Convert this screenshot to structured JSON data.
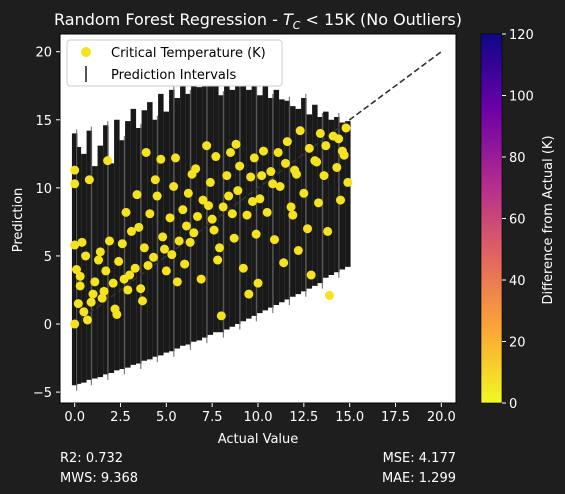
{
  "chart_data": {
    "type": "scatter",
    "title_main": "Random Forest Regression - ",
    "title_math": "T",
    "title_sub": "C",
    "title_tail": " < 15K (No Outliers)",
    "xlabel": "Actual Value",
    "ylabel": "Prediction",
    "xlim": [
      -0.8,
      20.8
    ],
    "ylim": [
      -5.8,
      21.3
    ],
    "xticks": [
      0.0,
      2.5,
      5.0,
      7.5,
      10.0,
      12.5,
      15.0,
      17.5,
      20.0
    ],
    "xtick_labels": [
      "0.0",
      "2.5",
      "5.0",
      "7.5",
      "10.0",
      "12.5",
      "15.0",
      "17.5",
      "20.0"
    ],
    "yticks": [
      -5,
      0,
      5,
      10,
      15,
      20
    ],
    "ytick_labels": [
      "−5",
      "0",
      "5",
      "10",
      "15",
      "20"
    ],
    "grid": false,
    "legend": {
      "position": "top-left",
      "entries": [
        {
          "label": "Critical Temperature (K)",
          "marker": "dot",
          "color": "#f5e31f"
        },
        {
          "label": "Prediction Intervals",
          "marker": "vline",
          "color": "#555555"
        }
      ]
    },
    "reference_line": {
      "style": "dashed",
      "color": "#333333",
      "points": [
        [
          0,
          0
        ],
        [
          20,
          20
        ]
      ]
    },
    "colorbar": {
      "label": "Difference from Actual (K)",
      "range": [
        0,
        120
      ],
      "ticks": [
        0,
        20,
        40,
        60,
        80,
        100,
        120
      ],
      "tick_labels": [
        "0",
        "20",
        "40",
        "60",
        "80",
        "100",
        "120"
      ],
      "colormap": "plasma_r",
      "stops": [
        "#f0f921",
        "#fca636",
        "#e16462",
        "#b12a90",
        "#6a00a8",
        "#0d0887"
      ]
    },
    "marker_color": "#f5e31f",
    "interval_color": "#000000",
    "points": [
      [
        0.0,
        11.3
      ],
      [
        0.0,
        10.3
      ],
      [
        0.8,
        10.6
      ],
      [
        0.0,
        5.8
      ],
      [
        0.1,
        4.0
      ],
      [
        0.3,
        2.8
      ],
      [
        0.2,
        1.5
      ],
      [
        0.5,
        0.9
      ],
      [
        0.0,
        0.0
      ],
      [
        0.3,
        3.5
      ],
      [
        0.6,
        5.0
      ],
      [
        0.9,
        1.6
      ],
      [
        1.1,
        3.1
      ],
      [
        1.3,
        4.7
      ],
      [
        1.6,
        2.4
      ],
      [
        1.8,
        12.0
      ],
      [
        1.9,
        6.1
      ],
      [
        2.1,
        3.0
      ],
      [
        2.3,
        0.7
      ],
      [
        2.4,
        4.6
      ],
      [
        2.6,
        5.9
      ],
      [
        2.8,
        8.2
      ],
      [
        3.0,
        3.6
      ],
      [
        3.1,
        6.8
      ],
      [
        3.3,
        4.1
      ],
      [
        3.5,
        7.1
      ],
      [
        3.6,
        2.6
      ],
      [
        3.8,
        5.6
      ],
      [
        3.9,
        12.6
      ],
      [
        4.1,
        8.1
      ],
      [
        4.3,
        4.9
      ],
      [
        4.5,
        9.4
      ],
      [
        4.7,
        12.1
      ],
      [
        4.8,
        6.4
      ],
      [
        5.0,
        3.9
      ],
      [
        5.2,
        7.8
      ],
      [
        5.4,
        10.1
      ],
      [
        5.5,
        12.2
      ],
      [
        5.7,
        6.1
      ],
      [
        5.9,
        8.4
      ],
      [
        6.0,
        4.4
      ],
      [
        6.2,
        9.6
      ],
      [
        6.4,
        11.0
      ],
      [
        6.5,
        6.7
      ],
      [
        6.7,
        7.9
      ],
      [
        6.9,
        3.3
      ],
      [
        7.0,
        9.1
      ],
      [
        7.2,
        13.1
      ],
      [
        7.4,
        10.4
      ],
      [
        7.5,
        7.7
      ],
      [
        7.7,
        12.3
      ],
      [
        7.9,
        5.6
      ],
      [
        8.0,
        0.6
      ],
      [
        8.1,
        8.6
      ],
      [
        8.3,
        10.9
      ],
      [
        8.5,
        12.6
      ],
      [
        8.7,
        6.3
      ],
      [
        8.9,
        9.8
      ],
      [
        9.0,
        11.6
      ],
      [
        9.2,
        4.1
      ],
      [
        9.4,
        8.0
      ],
      [
        9.5,
        2.2
      ],
      [
        9.6,
        10.8
      ],
      [
        9.8,
        12.2
      ],
      [
        10.0,
        3.0
      ],
      [
        10.1,
        9.2
      ],
      [
        10.3,
        12.7
      ],
      [
        10.5,
        8.2
      ],
      [
        10.7,
        11.2
      ],
      [
        10.9,
        6.2
      ],
      [
        11.1,
        12.6
      ],
      [
        11.2,
        10.1
      ],
      [
        11.4,
        4.5
      ],
      [
        11.6,
        13.4
      ],
      [
        11.8,
        8.6
      ],
      [
        12.0,
        11.3
      ],
      [
        12.2,
        5.4
      ],
      [
        12.3,
        14.2
      ],
      [
        12.5,
        9.6
      ],
      [
        12.7,
        7.0
      ],
      [
        12.9,
        3.6
      ],
      [
        13.1,
        12.0
      ],
      [
        13.3,
        8.9
      ],
      [
        13.4,
        14.0
      ],
      [
        13.6,
        10.9
      ],
      [
        13.8,
        6.8
      ],
      [
        13.9,
        2.1
      ],
      [
        14.1,
        13.8
      ],
      [
        14.3,
        11.5
      ],
      [
        14.5,
        9.1
      ],
      [
        14.6,
        12.7
      ],
      [
        14.8,
        14.4
      ],
      [
        14.9,
        10.4
      ],
      [
        0.4,
        6.0
      ],
      [
        1.4,
        5.3
      ],
      [
        2.2,
        1.1
      ],
      [
        3.4,
        9.5
      ],
      [
        4.4,
        10.6
      ],
      [
        6.6,
        11.4
      ],
      [
        8.8,
        13.2
      ],
      [
        1.0,
        2.2
      ],
      [
        1.7,
        3.9
      ],
      [
        2.7,
        3.3
      ],
      [
        4.9,
        5.5
      ],
      [
        6.1,
        7.2
      ],
      [
        7.3,
        8.7
      ],
      [
        8.4,
        9.4
      ],
      [
        10.2,
        10.9
      ],
      [
        11.5,
        11.8
      ],
      [
        12.8,
        12.9
      ],
      [
        13.7,
        13.1
      ],
      [
        14.4,
        13.6
      ],
      [
        0.7,
        0.3
      ],
      [
        1.5,
        1.9
      ],
      [
        2.9,
        2.5
      ],
      [
        4.0,
        4.3
      ],
      [
        5.3,
        5.1
      ],
      [
        6.3,
        6.0
      ],
      [
        7.6,
        6.9
      ],
      [
        8.6,
        8.1
      ],
      [
        9.7,
        9.0
      ],
      [
        10.8,
        10.3
      ],
      [
        12.1,
        11.0
      ],
      [
        13.2,
        11.9
      ],
      [
        14.7,
        12.4
      ],
      [
        3.7,
        1.7
      ],
      [
        5.6,
        3.1
      ],
      [
        7.8,
        4.7
      ],
      [
        9.9,
        6.6
      ],
      [
        11.9,
        8.0
      ]
    ],
    "intervals": [
      [
        0.0,
        -4.5,
        14.0
      ],
      [
        0.2,
        -4.4,
        13.0
      ],
      [
        0.5,
        -4.3,
        12.5
      ],
      [
        0.8,
        -4.1,
        14.2
      ],
      [
        1.1,
        -4.0,
        11.6
      ],
      [
        1.4,
        -3.9,
        13.1
      ],
      [
        1.7,
        -3.7,
        14.6
      ],
      [
        2.0,
        -3.6,
        11.8
      ],
      [
        2.3,
        -3.4,
        15.0
      ],
      [
        2.6,
        -3.3,
        13.5
      ],
      [
        2.9,
        -3.2,
        14.9
      ],
      [
        3.2,
        -3.0,
        15.8
      ],
      [
        3.5,
        -2.9,
        14.4
      ],
      [
        3.8,
        -2.7,
        15.7
      ],
      [
        4.1,
        -2.6,
        16.3
      ],
      [
        4.4,
        -2.4,
        15.0
      ],
      [
        4.7,
        -2.3,
        16.9
      ],
      [
        5.0,
        -2.1,
        15.6
      ],
      [
        5.3,
        -2.0,
        17.2
      ],
      [
        5.6,
        -1.8,
        16.6
      ],
      [
        5.9,
        -1.6,
        17.8
      ],
      [
        6.2,
        -1.5,
        16.9
      ],
      [
        6.5,
        -1.3,
        18.3
      ],
      [
        6.8,
        -1.2,
        17.4
      ],
      [
        7.1,
        -1.0,
        18.0
      ],
      [
        7.4,
        -0.8,
        17.6
      ],
      [
        7.7,
        -0.6,
        18.3
      ],
      [
        8.0,
        -0.6,
        16.8
      ],
      [
        8.3,
        -0.4,
        18.2
      ],
      [
        8.6,
        -0.2,
        17.2
      ],
      [
        8.9,
        0.0,
        17.8
      ],
      [
        9.2,
        0.2,
        18.0
      ],
      [
        9.5,
        0.4,
        17.2
      ],
      [
        9.8,
        0.6,
        17.6
      ],
      [
        10.1,
        0.8,
        16.8
      ],
      [
        10.4,
        1.0,
        17.5
      ],
      [
        10.7,
        1.2,
        16.6
      ],
      [
        11.0,
        1.4,
        17.2
      ],
      [
        11.3,
        1.6,
        16.5
      ],
      [
        11.6,
        1.8,
        16.4
      ],
      [
        11.9,
        2.0,
        16.0
      ],
      [
        12.2,
        2.2,
        15.8
      ],
      [
        12.5,
        2.4,
        16.6
      ],
      [
        12.8,
        2.6,
        15.4
      ],
      [
        13.1,
        2.8,
        16.1
      ],
      [
        13.4,
        3.0,
        15.2
      ],
      [
        13.7,
        3.4,
        15.6
      ],
      [
        14.0,
        3.6,
        15.0
      ],
      [
        14.3,
        3.8,
        15.2
      ],
      [
        14.6,
        4.0,
        14.8
      ],
      [
        14.9,
        4.2,
        14.9
      ]
    ],
    "stats": {
      "r2": "R2: 0.732",
      "mws": "MWS: 9.368",
      "mse": "MSE: 4.177",
      "mae": "MAE: 1.299"
    }
  }
}
